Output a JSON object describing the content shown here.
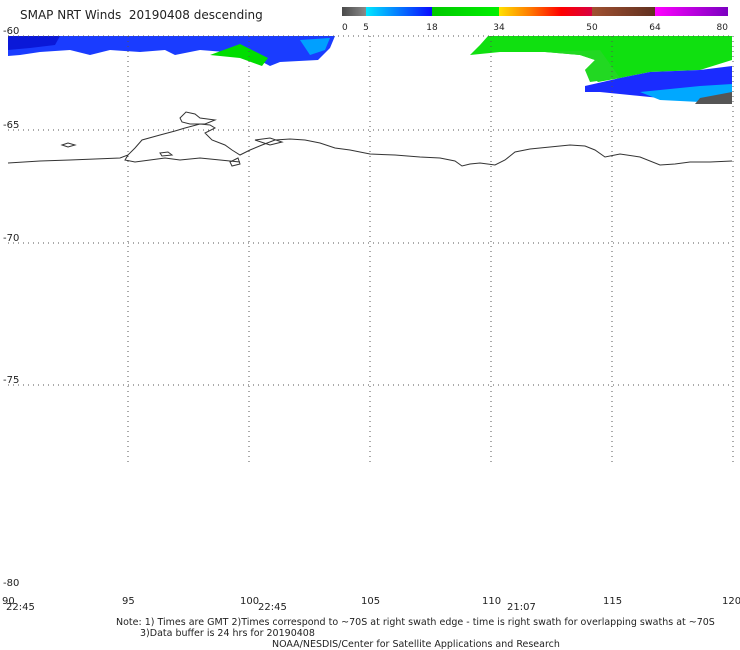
{
  "title": "SMAP NRT Winds  20190408 descending",
  "colorbar": {
    "ticks": [
      "0",
      "5",
      "18",
      "34",
      "50",
      "64",
      "80"
    ],
    "segments": [
      {
        "from": 0,
        "to": 5,
        "colors": [
          "#4a4a4a",
          "#8a8a8a"
        ]
      },
      {
        "from": 5,
        "to": 18,
        "colors": [
          "#00e8ff",
          "#0a0aff"
        ]
      },
      {
        "from": 18,
        "to": 34,
        "colors": [
          "#00c800",
          "#00f000"
        ]
      },
      {
        "from": 34,
        "to": 50,
        "colors": [
          "#ffe000",
          "#ff7a00",
          "#ff0000",
          "#d80040"
        ]
      },
      {
        "from": 50,
        "to": 64,
        "colors": [
          "#a05030",
          "#603020"
        ]
      },
      {
        "from": 64,
        "to": 80,
        "colors": [
          "#ff00ff",
          "#7a00c0"
        ]
      }
    ]
  },
  "map": {
    "lat_labels": [
      "-60",
      "-65",
      "-70",
      "-75",
      "-80"
    ],
    "lon_labels": [
      "90",
      "95",
      "100",
      "105",
      "110",
      "115",
      "120"
    ],
    "time_labels": [
      "22:45",
      "22:45",
      "21:07"
    ],
    "lat_range": [
      -80,
      -60
    ],
    "lon_range": [
      90,
      120
    ],
    "grid": true
  },
  "notes": {
    "line1": "Note: 1) Times are GMT 2)Times correspond to ~70S at right swath edge - time is right swath for overlapping swaths at ~70S",
    "line2": "3)Data buffer is 24 hrs for 20190408",
    "line3": "NOAA/NESDIS/Center for Satellite Applications and Research"
  }
}
